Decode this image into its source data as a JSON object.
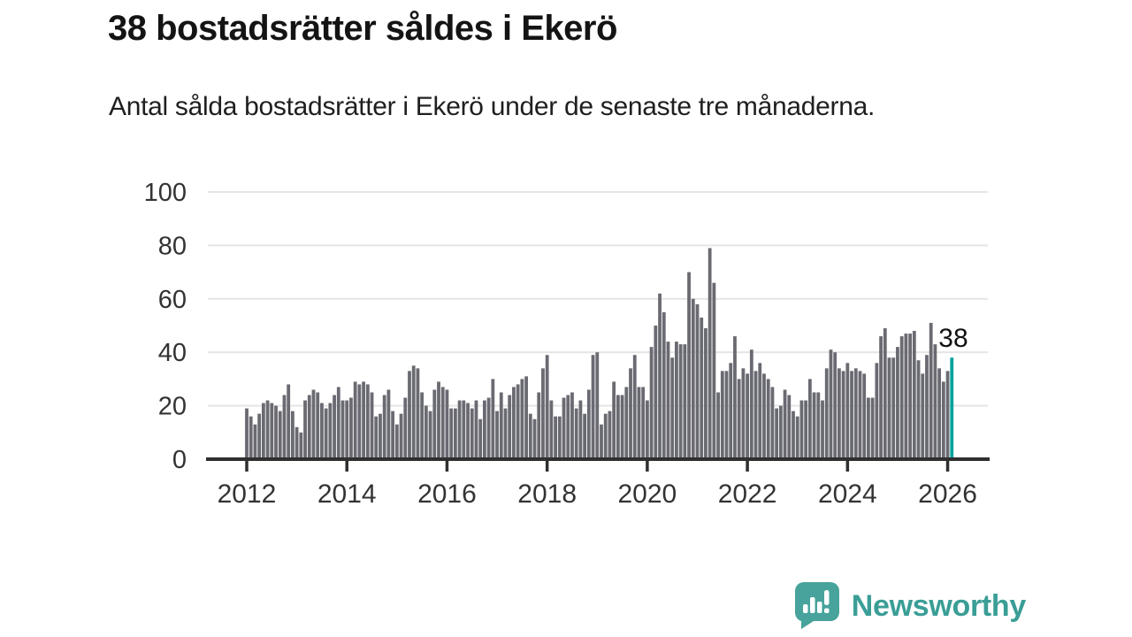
{
  "header": {
    "title": "38 bostadsrätter såldes i Ekerö",
    "subtitle": "Antal sålda bostadsrätter i Ekerö under de senaste tre månaderna."
  },
  "footer": {
    "brand": "Newsworthy",
    "logo_icon": "newsworthy-speech-bubble-bar-chart-icon"
  },
  "colors": {
    "bar": "#6a6a72",
    "highlight_bar": "#00a29c",
    "axis": "#2f2f2f",
    "gridline": "#e5e5e5",
    "tick_label": "#333333",
    "annotation_text": "#111111",
    "brand_teal": "#3a9e96",
    "title_text": "#141414"
  },
  "chart_data": {
    "type": "bar",
    "title": "38 bostadsrätter såldes i Ekerö",
    "subtitle": "Antal sålda bostadsrätter i Ekerö under de senaste tre månaderna.",
    "xlabel": "",
    "ylabel": "",
    "ylim": [
      0,
      100
    ],
    "y_ticks": [
      0,
      20,
      40,
      60,
      80,
      100
    ],
    "x_tick_labels": [
      "2012",
      "2014",
      "2016",
      "2018",
      "2020",
      "2022",
      "2024",
      "2026"
    ],
    "frequency": "monthly",
    "x_start": "2012-01",
    "x_end": "2026-02",
    "grid": true,
    "legend": false,
    "annotation_label": "38",
    "last_value": 38,
    "highlight_last_bar": true,
    "series": [
      {
        "name": "Antal sålda bostadsrätter",
        "values": [
          19,
          16,
          13,
          17,
          21,
          22,
          21,
          20,
          18,
          24,
          28,
          18,
          12,
          10,
          22,
          24,
          26,
          25,
          21,
          19,
          21,
          24,
          27,
          22,
          22,
          23,
          29,
          28,
          29,
          28,
          25,
          16,
          17,
          24,
          26,
          18,
          13,
          17,
          23,
          33,
          35,
          34,
          25,
          20,
          18,
          26,
          29,
          27,
          26,
          19,
          19,
          22,
          22,
          21,
          19,
          22,
          15,
          22,
          23,
          30,
          18,
          25,
          19,
          24,
          27,
          28,
          30,
          31,
          17,
          15,
          25,
          34,
          39,
          22,
          16,
          16,
          23,
          24,
          25,
          19,
          22,
          17,
          26,
          39,
          40,
          13,
          17,
          18,
          29,
          24,
          24,
          27,
          34,
          39,
          27,
          27,
          22,
          42,
          50,
          62,
          55,
          44,
          38,
          44,
          43,
          43,
          70,
          60,
          58,
          53,
          49,
          79,
          66,
          25,
          33,
          33,
          36,
          46,
          30,
          34,
          32,
          41,
          33,
          36,
          32,
          30,
          27,
          19,
          20,
          26,
          24,
          18,
          16,
          22,
          22,
          30,
          25,
          25,
          22,
          34,
          41,
          40,
          34,
          33,
          36,
          33,
          34,
          33,
          32,
          23,
          23,
          36,
          46,
          49,
          38,
          38,
          42,
          46,
          47,
          47,
          48,
          37,
          32,
          39,
          51,
          43,
          34,
          29,
          33,
          38
        ]
      }
    ]
  }
}
